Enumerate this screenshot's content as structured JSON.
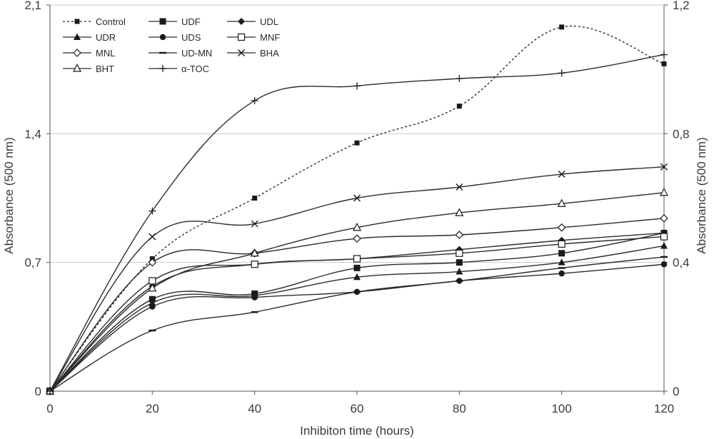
{
  "chart_data": {
    "type": "line",
    "xlabel": "Inhibiton time (hours)",
    "ylabel": "Absorbance (500 nm)",
    "y2label": "Absorbance (500 nm)",
    "x": [
      0,
      20,
      40,
      60,
      80,
      100,
      120
    ],
    "xlim": [
      0,
      120
    ],
    "ylim": [
      0,
      2.1
    ],
    "y2lim": [
      0,
      1.2
    ],
    "x_ticks": [
      "0",
      "20",
      "40",
      "60",
      "80",
      "100",
      "120"
    ],
    "y_ticks": [
      "0",
      "0,7",
      "1,4",
      "2,1"
    ],
    "y2_ticks": [
      "0",
      "0,4",
      "0,8",
      "1,2"
    ],
    "grid": "horizontal",
    "legend_position": "top-left",
    "series": [
      {
        "name": "Control",
        "marker": "filled-square-small",
        "dash": true,
        "values": [
          0,
          0.72,
          1.05,
          1.35,
          1.55,
          1.98,
          1.78
        ]
      },
      {
        "name": "UDF",
        "marker": "filled-square",
        "dash": false,
        "values": [
          0,
          0.5,
          0.53,
          0.67,
          0.7,
          0.75,
          0.86
        ]
      },
      {
        "name": "UDL",
        "marker": "filled-diamond",
        "dash": false,
        "values": [
          0,
          0.57,
          0.69,
          0.72,
          0.77,
          0.82,
          0.86
        ]
      },
      {
        "name": "UDR",
        "marker": "filled-triangle",
        "dash": false,
        "values": [
          0,
          0.48,
          0.52,
          0.62,
          0.65,
          0.7,
          0.79
        ]
      },
      {
        "name": "UDS",
        "marker": "filled-circle",
        "dash": false,
        "values": [
          0,
          0.46,
          0.51,
          0.54,
          0.6,
          0.64,
          0.69
        ]
      },
      {
        "name": "MNF",
        "marker": "open-square",
        "dash": false,
        "values": [
          0,
          0.6,
          0.69,
          0.72,
          0.75,
          0.8,
          0.84
        ]
      },
      {
        "name": "MNL",
        "marker": "open-diamond",
        "dash": false,
        "values": [
          0,
          0.7,
          0.75,
          0.83,
          0.85,
          0.89,
          0.94
        ]
      },
      {
        "name": "UD-MN",
        "marker": "dash",
        "dash": false,
        "values": [
          0,
          0.33,
          0.43,
          0.54,
          0.6,
          0.67,
          0.73
        ]
      },
      {
        "name": "BHA",
        "marker": "x",
        "dash": false,
        "values": [
          0,
          0.84,
          0.91,
          1.05,
          1.11,
          1.18,
          1.22
        ]
      },
      {
        "name": "BHT",
        "marker": "open-triangle",
        "dash": false,
        "values": [
          0,
          0.56,
          0.75,
          0.89,
          0.97,
          1.02,
          1.08
        ]
      },
      {
        "name": "α-TOC",
        "marker": "plus",
        "dash": false,
        "values": [
          0,
          0.98,
          1.58,
          1.66,
          1.7,
          1.73,
          1.83
        ]
      }
    ]
  }
}
